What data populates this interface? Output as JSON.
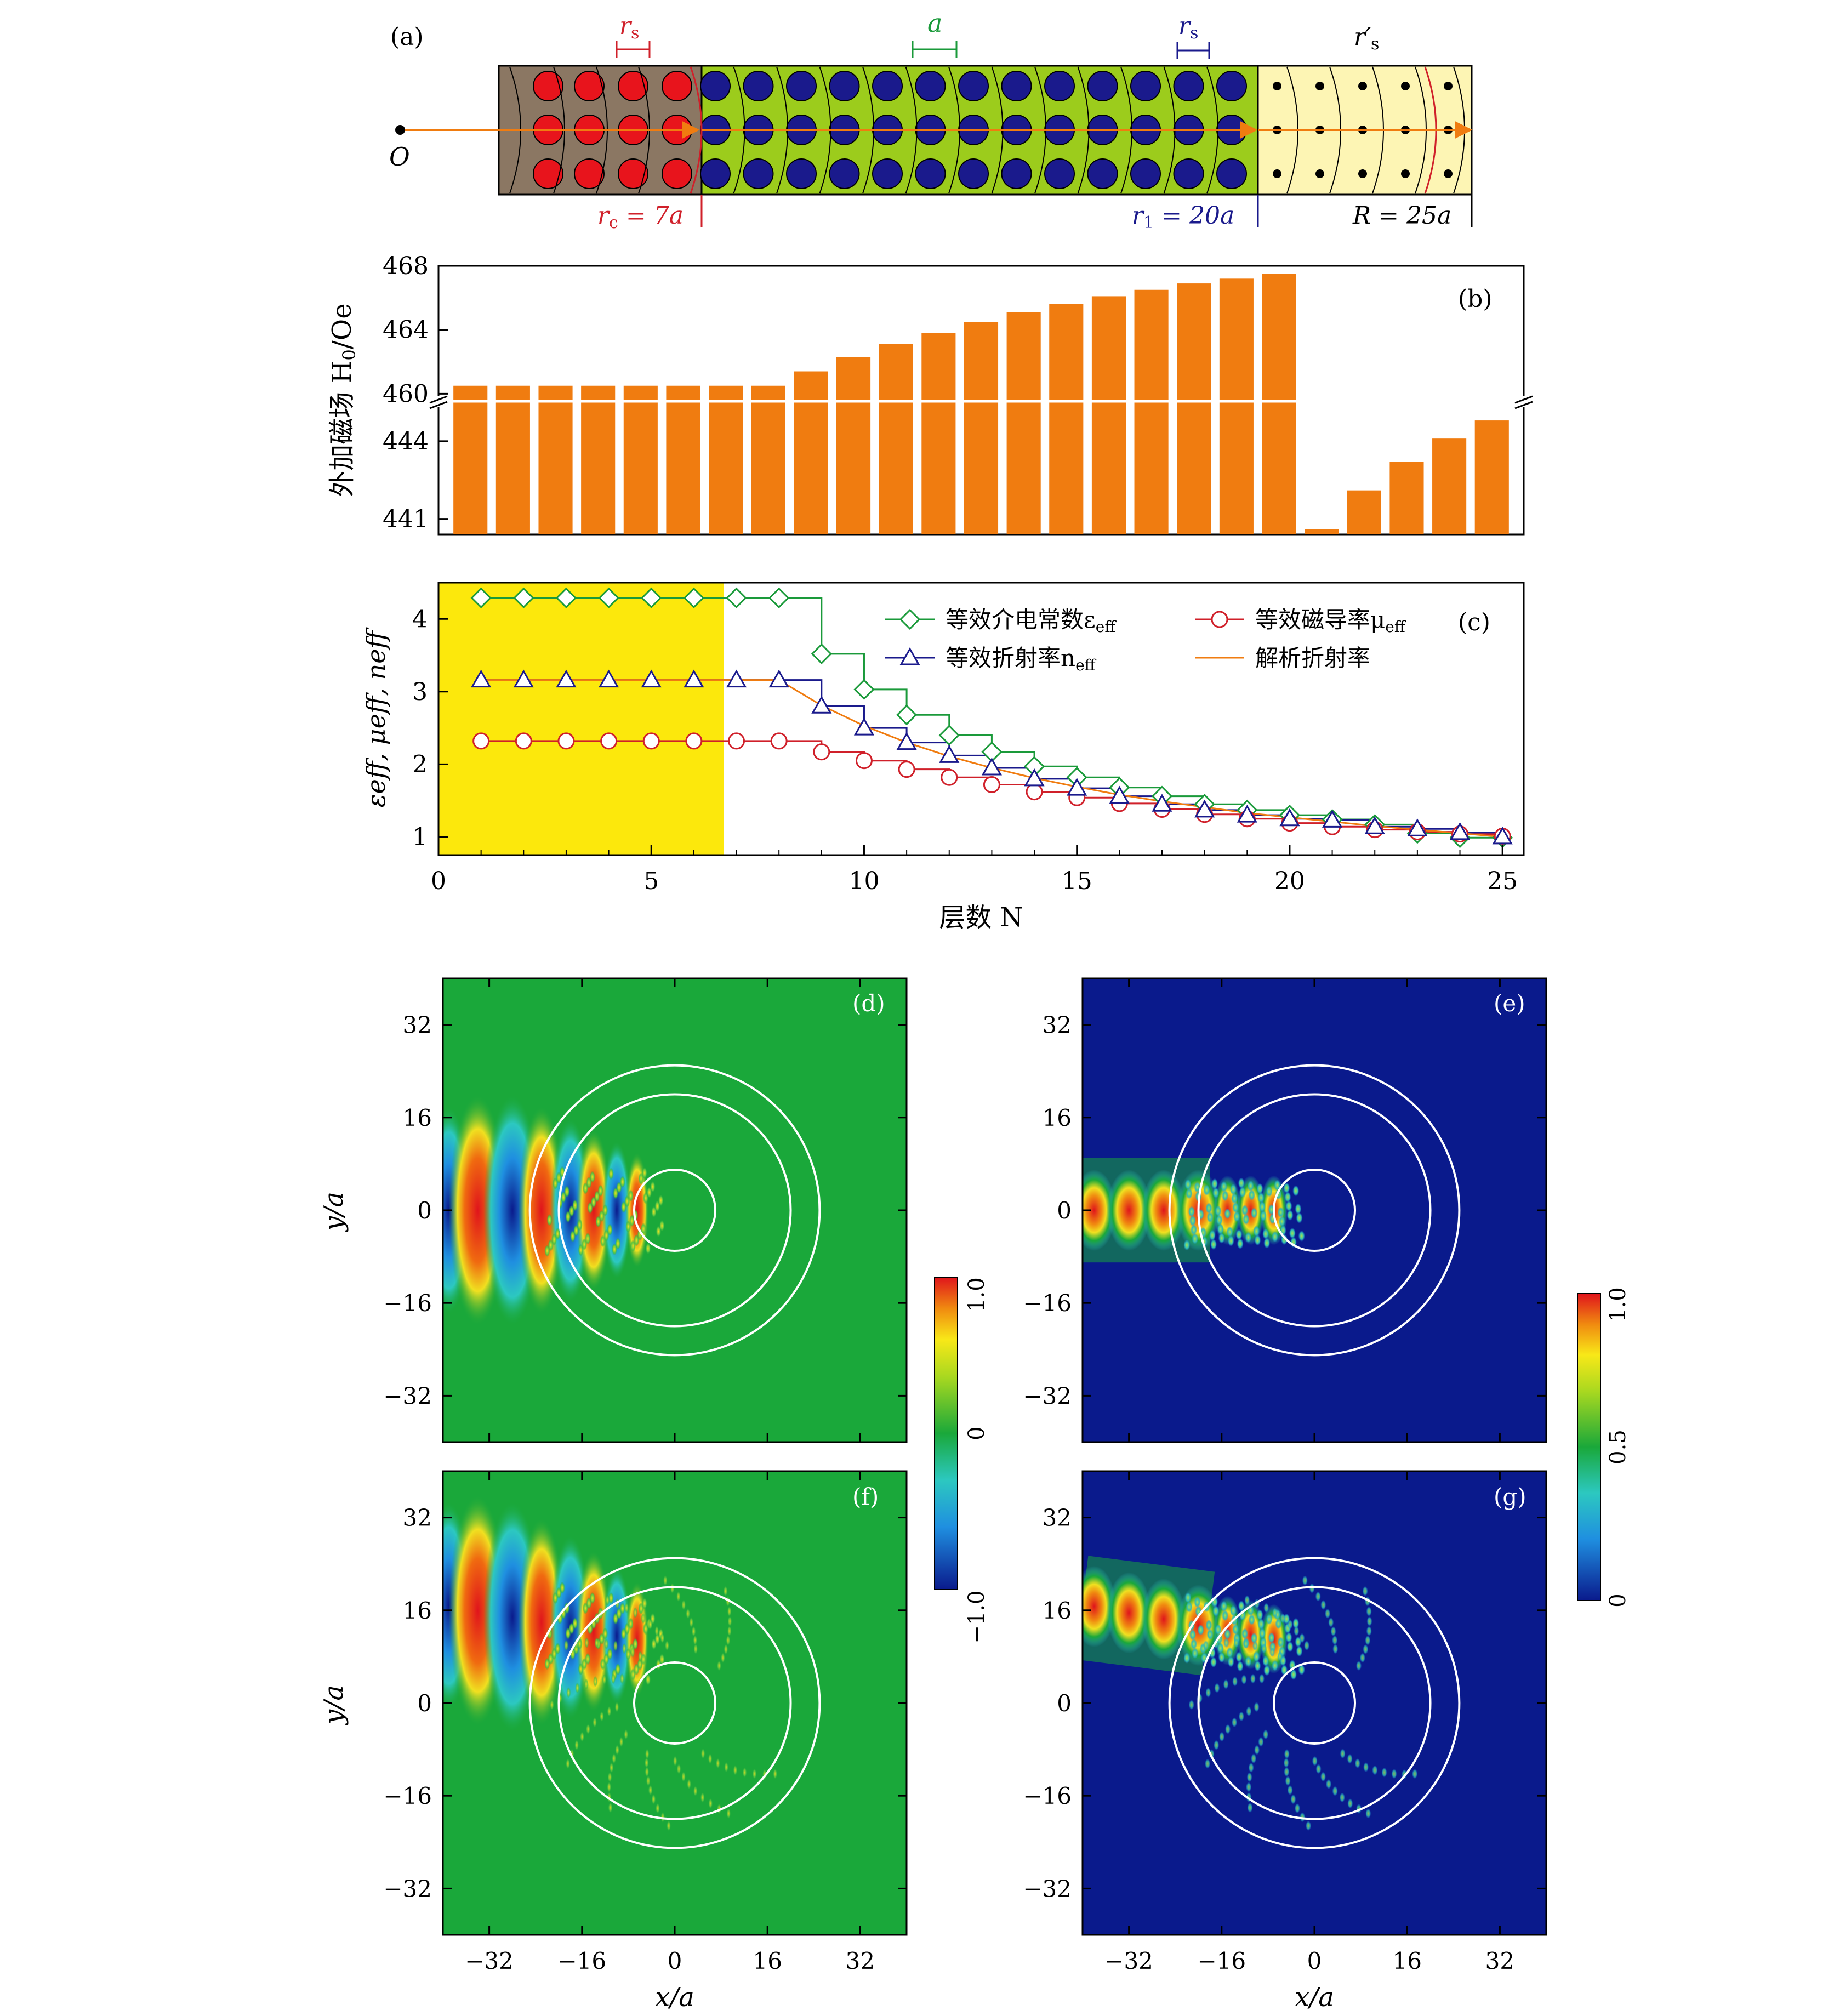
{
  "panel_a": {
    "label": "(a)",
    "origin": "O",
    "rs_left": "r",
    "rs_sub": "s",
    "a_label": "a",
    "rs_right": "r",
    "rs_right_sub": "s",
    "rs_prime": "r′",
    "rs_prime_sub": "s",
    "rc": "r",
    "rc_sub": "c",
    "rc_val": " = 7a",
    "r1": "r",
    "r1_sub": "1",
    "r1_val": " = 20a",
    "R_label": "R = 25a",
    "colors": {
      "core": "#8b7763",
      "shell": "#9ccc1c",
      "outer": "#fdf5b4",
      "red_rod": "#e8141c",
      "blue_rod": "#1a1a8c",
      "arrow": "#f07c10"
    }
  },
  "panel_b": {
    "label": "(b)",
    "ylabel": "外加磁场 H",
    "ylabel_sub": "0",
    "ylabel_unit": "/Oe",
    "yticks_upper": [
      "460",
      "464",
      "468"
    ],
    "yticks_lower": [
      "441",
      "444"
    ]
  },
  "panel_c": {
    "label": "(c)",
    "ylabel": "εeff, μeff, neff",
    "xlabel": "层数 N",
    "xticks": [
      "0",
      "5",
      "10",
      "15",
      "20",
      "25"
    ],
    "yticks": [
      "1",
      "2",
      "3",
      "4"
    ],
    "legend": {
      "eps": "等效介电常数ε",
      "eps_sub": "eff",
      "mu": "等效磁导率μ",
      "mu_sub": "eff",
      "n": "等效折射率n",
      "n_sub": "eff",
      "analytic": "解析折射率"
    }
  },
  "field_maps": {
    "labels": [
      "(d)",
      "(e)",
      "(f)",
      "(g)"
    ],
    "ticks": [
      "−32",
      "−16",
      "0",
      "16",
      "32"
    ],
    "ylabel": "y/a",
    "xlabel": "x/a",
    "colorbar_left": [
      "−1.0",
      "0",
      "1.0"
    ],
    "colorbar_right": [
      "0",
      "0.5",
      "1.0"
    ]
  },
  "chart_data": [
    {
      "type": "bar",
      "categories": [
        1,
        2,
        3,
        4,
        5,
        6,
        7,
        8,
        9,
        10,
        11,
        12,
        13,
        14,
        15,
        16,
        17,
        18,
        19,
        20,
        21,
        22,
        23,
        24,
        25
      ],
      "values": [
        460.5,
        460.5,
        460.5,
        460.5,
        460.5,
        460.5,
        460.5,
        460.5,
        461.4,
        462.3,
        463.1,
        463.8,
        464.5,
        465.1,
        465.6,
        466.1,
        466.5,
        466.9,
        467.2,
        467.5,
        440.6,
        442.1,
        443.2,
        444.1,
        444.8
      ],
      "ylim_upper": [
        459.6,
        468
      ],
      "ylim_lower": [
        440.4,
        445.5
      ],
      "axis_break": true,
      "xlabel": "",
      "ylabel": "外加磁场 H0/Oe",
      "color": "#f07c10"
    },
    {
      "type": "line",
      "x": [
        1,
        2,
        3,
        4,
        5,
        6,
        7,
        8,
        9,
        10,
        11,
        12,
        13,
        14,
        15,
        16,
        17,
        18,
        19,
        20,
        21,
        22,
        23,
        24,
        25
      ],
      "xlim": [
        0,
        25.5
      ],
      "ylim": [
        0.75,
        4.5
      ],
      "shaded_region": [
        0,
        6.7
      ],
      "xlabel": "层数 N",
      "series": [
        {
          "name": "等效介电常数εeff",
          "marker": "diamond",
          "color": "#1a9a3a",
          "values": [
            4.29,
            4.29,
            4.29,
            4.29,
            4.29,
            4.29,
            4.29,
            4.29,
            3.52,
            3.03,
            2.68,
            2.4,
            2.17,
            1.97,
            1.82,
            1.68,
            1.56,
            1.45,
            1.37,
            1.3,
            1.24,
            1.17,
            1.05,
            0.99,
            0.99
          ]
        },
        {
          "name": "等效磁导率μeff",
          "marker": "circle",
          "color": "#d0202a",
          "values": [
            2.32,
            2.32,
            2.32,
            2.32,
            2.32,
            2.32,
            2.32,
            2.32,
            2.17,
            2.05,
            1.93,
            1.82,
            1.72,
            1.62,
            1.54,
            1.46,
            1.38,
            1.31,
            1.25,
            1.19,
            1.14,
            1.1,
            1.07,
            1.04,
            1.01
          ]
        },
        {
          "name": "等效折射率neff",
          "marker": "triangle",
          "color": "#1a1a8c",
          "values": [
            3.16,
            3.16,
            3.16,
            3.16,
            3.16,
            3.16,
            3.16,
            3.16,
            2.8,
            2.5,
            2.3,
            2.12,
            1.95,
            1.8,
            1.67,
            1.56,
            1.45,
            1.37,
            1.3,
            1.25,
            1.23,
            1.14,
            1.11,
            1.06,
            1.0
          ]
        },
        {
          "name": "解析折射率",
          "marker": "none",
          "color": "#f07c10",
          "values": [
            3.16,
            3.16,
            3.16,
            3.16,
            3.16,
            3.16,
            3.16,
            3.16,
            2.81,
            2.53,
            2.3,
            2.11,
            1.95,
            1.81,
            1.69,
            1.58,
            1.49,
            1.41,
            1.33,
            1.27,
            1.21,
            1.15,
            1.1,
            1.05,
            1.0
          ]
        }
      ]
    }
  ]
}
